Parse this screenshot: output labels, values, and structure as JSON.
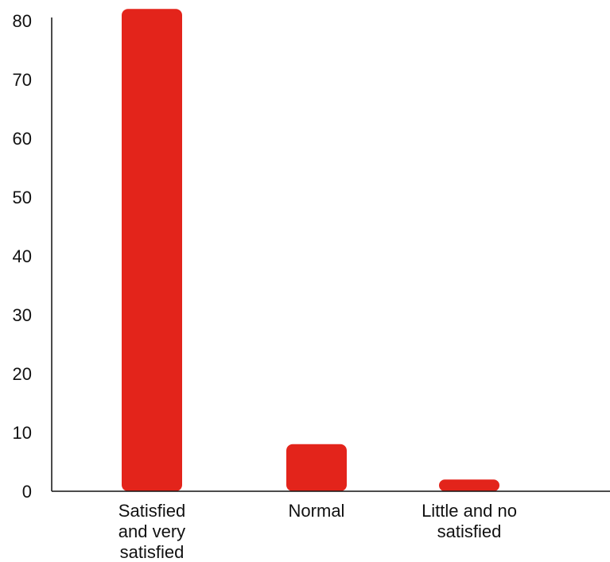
{
  "chart_data": {
    "type": "bar",
    "categories": [
      [
        "Satisfied",
        "and very",
        "satisfied"
      ],
      [
        "Normal"
      ],
      [
        "Little and no",
        "satisfied"
      ]
    ],
    "values": [
      82,
      8,
      2
    ],
    "ylim": [
      0,
      80
    ],
    "yticks": [
      0,
      10,
      20,
      30,
      40,
      50,
      60,
      70,
      80
    ],
    "bar_color": "#e3241b",
    "grid": false,
    "legend": "none",
    "title": "",
    "xlabel": "",
    "ylabel": ""
  }
}
